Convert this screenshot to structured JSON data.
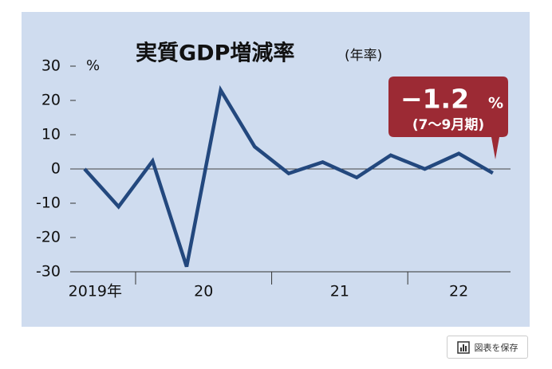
{
  "chart_data": {
    "type": "line",
    "title": "実質GDP増減率",
    "title_suffix": "(年率)",
    "y_unit": "%",
    "categories": [
      null,
      null,
      null,
      null,
      null,
      null,
      null,
      null,
      null,
      null,
      null,
      null,
      null
    ],
    "x_groups": [
      {
        "label": "2019年",
        "count": 2
      },
      {
        "label": "20",
        "count": 4
      },
      {
        "label": "21",
        "count": 4
      },
      {
        "label": "22",
        "count": 3
      }
    ],
    "series": [
      {
        "name": null,
        "color": "#23487e",
        "values": [
          0,
          -11,
          2.3,
          -28.5,
          23,
          6.5,
          -1.3,
          2,
          -2.5,
          4,
          0,
          4.5,
          -1.2
        ]
      }
    ],
    "ylim": [
      -30,
      30
    ],
    "yticks": [
      -30,
      -20,
      -10,
      0,
      10,
      20,
      30
    ],
    "annotation": {
      "value": "−1.2",
      "unit": "%",
      "note": "(7〜9月期)"
    }
  },
  "button": {
    "label": "図表を保存"
  }
}
